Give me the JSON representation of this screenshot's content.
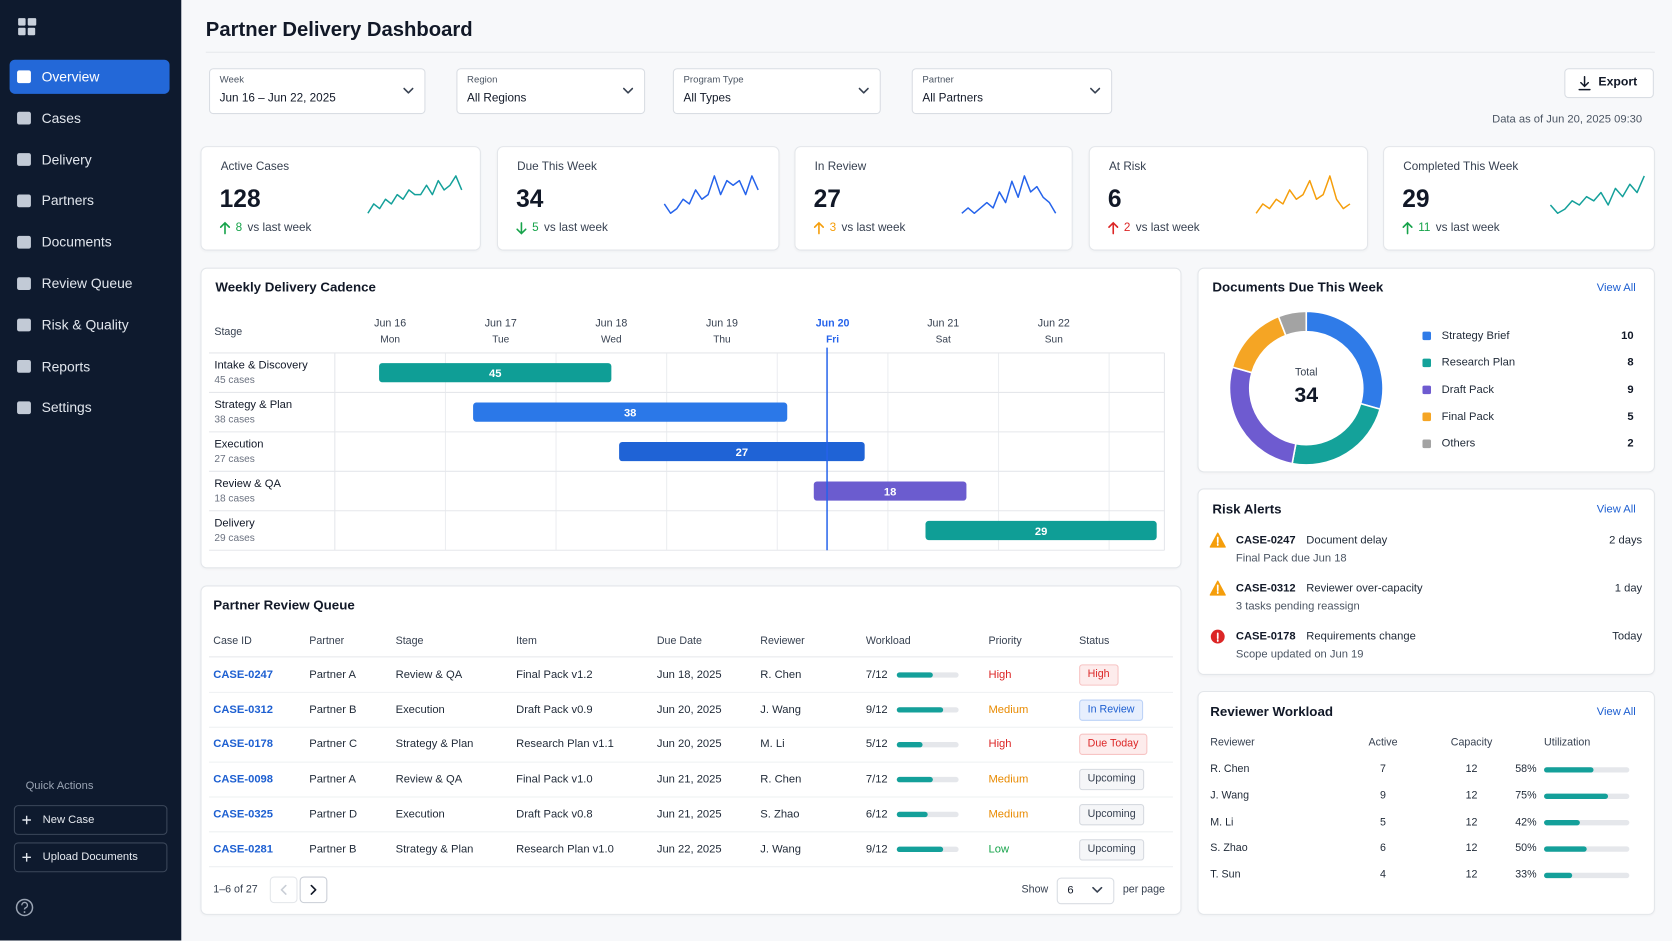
{
  "sidebar": {
    "nav": [
      "Overview",
      "Cases",
      "Delivery",
      "Partners",
      "Documents",
      "Review Queue",
      "Risk & Quality",
      "Reports",
      "Settings"
    ],
    "active_index": 0,
    "quick_actions": "Quick Actions",
    "actions": [
      "New Case",
      "Upload Documents"
    ]
  },
  "header": {
    "title": "Partner Delivery Dashboard",
    "export": "Export",
    "data_as_of": "Data as of Jun 20, 2025 09:30"
  },
  "filters": [
    {
      "label": "Week",
      "value": "Jun 16 – Jun 22, 2025"
    },
    {
      "label": "Region",
      "value": "All Regions"
    },
    {
      "label": "Program Type",
      "value": "All Types"
    },
    {
      "label": "Partner",
      "value": "All Partners"
    }
  ],
  "kpis": [
    {
      "label": "Active Cases",
      "value": 128,
      "delta": 8,
      "delta_text": "vs last week",
      "direction": "up",
      "delta_color": "#16a34a",
      "trend_color": "#14a09a",
      "trend": [
        2,
        4,
        3,
        5,
        4,
        6,
        5,
        7,
        6,
        6,
        8,
        6,
        9,
        7,
        8,
        10,
        7
      ]
    },
    {
      "label": "Due This Week",
      "value": 34,
      "delta": 5,
      "delta_text": "vs last week",
      "direction": "down",
      "delta_color": "#16a34a",
      "trend_color": "#2563eb",
      "trend": [
        3,
        1,
        2,
        4,
        3,
        6,
        4,
        5,
        9,
        5,
        8,
        7,
        8,
        5,
        9,
        6
      ]
    },
    {
      "label": "In Review",
      "value": 27,
      "delta": 3,
      "delta_text": "vs last week",
      "direction": "up",
      "delta_color": "#f59e0b",
      "trend_color": "#2563eb",
      "trend": [
        2,
        3,
        2,
        3,
        4,
        3,
        6,
        4,
        8,
        5,
        9,
        6,
        7,
        5,
        4,
        2
      ]
    },
    {
      "label": "At Risk",
      "value": 6,
      "delta": 2,
      "delta_text": "vs last week",
      "direction": "up",
      "delta_color": "#dc2626",
      "trend_color": "#f59e0b",
      "trend": [
        2,
        4,
        3,
        5,
        4,
        7,
        5,
        6,
        9,
        5,
        6,
        10,
        5,
        3,
        4
      ]
    },
    {
      "label": "Completed This Week",
      "value": 29,
      "delta": 11,
      "delta_text": "vs last week",
      "direction": "up",
      "delta_color": "#16a34a",
      "trend_color": "#14a09a",
      "trend": [
        3,
        1,
        2,
        4,
        3,
        5,
        4,
        6,
        3,
        7,
        5,
        8,
        6,
        10
      ]
    }
  ],
  "cadence": {
    "title": "Weekly Delivery Cadence",
    "stage_header": "Stage",
    "days": [
      {
        "date": "Jun 16",
        "weekday": "Mon"
      },
      {
        "date": "Jun 17",
        "weekday": "Tue"
      },
      {
        "date": "Jun 18",
        "weekday": "Wed"
      },
      {
        "date": "Jun 19",
        "weekday": "Thu"
      },
      {
        "date": "Jun 20",
        "weekday": "Fri"
      },
      {
        "date": "Jun 21",
        "weekday": "Sat"
      },
      {
        "date": "Jun 22",
        "weekday": "Sun"
      }
    ],
    "today_index": 4,
    "today_position": 4.45,
    "today_color": "#2563eb",
    "xlim": [
      0,
      7.5
    ],
    "stages": [
      {
        "name": "Intake & Discovery",
        "cases": "45 cases",
        "value": 45,
        "start": 0.4,
        "end": 2.5,
        "color": "#0f9e96"
      },
      {
        "name": "Strategy & Plan",
        "cases": "38 cases",
        "value": 38,
        "start": 1.25,
        "end": 4.09,
        "color": "#2b78e8"
      },
      {
        "name": "Execution",
        "cases": "27 cases",
        "value": 27,
        "start": 2.57,
        "end": 4.79,
        "color": "#1f63d6"
      },
      {
        "name": "Review & QA",
        "cases": "18 cases",
        "value": 18,
        "start": 4.33,
        "end": 5.71,
        "color": "#6b5ccf"
      },
      {
        "name": "Delivery",
        "cases": "29 cases",
        "value": 29,
        "start": 5.34,
        "end": 7.43,
        "color": "#0f9e96"
      }
    ]
  },
  "documents": {
    "title": "Documents Due This Week",
    "view_all": "View All",
    "total_label": "Total",
    "total": 34,
    "segments": [
      {
        "name": "Strategy Brief",
        "value": 10,
        "color": "#2f7be8"
      },
      {
        "name": "Research Plan",
        "value": 8,
        "color": "#14a29a"
      },
      {
        "name": "Draft Pack",
        "value": 9,
        "color": "#6e5bd0"
      },
      {
        "name": "Final Pack",
        "value": 5,
        "color": "#f5a524"
      },
      {
        "name": "Others",
        "value": 2,
        "color": "#a3a3a3"
      }
    ]
  },
  "risk_alerts": {
    "title": "Risk Alerts",
    "view_all": "View All",
    "items": [
      {
        "case": "CASE-0247",
        "title": "Document delay",
        "detail": "Final Pack due Jun 18",
        "time": "2 days",
        "severity": "warning"
      },
      {
        "case": "CASE-0312",
        "title": "Reviewer over-capacity",
        "detail": "3 tasks pending reassign",
        "time": "1 day",
        "severity": "warning"
      },
      {
        "case": "CASE-0178",
        "title": "Requirements change",
        "detail": "Scope updated on Jun 19",
        "time": "Today",
        "severity": "critical"
      }
    ]
  },
  "queue": {
    "title": "Partner Review Queue",
    "columns": [
      "Case ID",
      "Partner",
      "Stage",
      "Item",
      "Due Date",
      "Reviewer",
      "Workload",
      "Priority",
      "Status"
    ],
    "bar_color": "#14a09a",
    "rows": [
      {
        "case_id": "CASE-0247",
        "partner": "Partner A",
        "stage": "Review & QA",
        "item": "Final Pack v1.2",
        "due_date": "Jun 18, 2025",
        "reviewer": "R. Chen",
        "workload": 7,
        "capacity": 12,
        "workload_label": "7/12",
        "priority": "High",
        "priority_tone": "danger",
        "status": "High",
        "status_tone": "danger"
      },
      {
        "case_id": "CASE-0312",
        "partner": "Partner B",
        "stage": "Execution",
        "item": "Draft Pack v0.9",
        "due_date": "Jun 20, 2025",
        "reviewer": "J. Wang",
        "workload": 9,
        "capacity": 12,
        "workload_label": "9/12",
        "priority": "Medium",
        "priority_tone": "warning",
        "status": "In Review",
        "status_tone": "info"
      },
      {
        "case_id": "CASE-0178",
        "partner": "Partner C",
        "stage": "Strategy & Plan",
        "item": "Research Plan v1.1",
        "due_date": "Jun 20, 2025",
        "reviewer": "M. Li",
        "workload": 5,
        "capacity": 12,
        "workload_label": "5/12",
        "priority": "High",
        "priority_tone": "danger",
        "status": "Due Today",
        "status_tone": "danger"
      },
      {
        "case_id": "CASE-0098",
        "partner": "Partner A",
        "stage": "Review & QA",
        "item": "Final Pack v1.0",
        "due_date": "Jun 21, 2025",
        "reviewer": "R. Chen",
        "workload": 7,
        "capacity": 12,
        "workload_label": "7/12",
        "priority": "Medium",
        "priority_tone": "warning",
        "status": "Upcoming",
        "status_tone": "neutral"
      },
      {
        "case_id": "CASE-0325",
        "partner": "Partner D",
        "stage": "Execution",
        "item": "Draft Pack v0.8",
        "due_date": "Jun 21, 2025",
        "reviewer": "S. Zhao",
        "workload": 6,
        "capacity": 12,
        "workload_label": "6/12",
        "priority": "Medium",
        "priority_tone": "warning",
        "status": "Upcoming",
        "status_tone": "neutral"
      },
      {
        "case_id": "CASE-0281",
        "partner": "Partner B",
        "stage": "Strategy & Plan",
        "item": "Research Plan v1.0",
        "due_date": "Jun 22, 2025",
        "reviewer": "J. Wang",
        "workload": 9,
        "capacity": 12,
        "workload_label": "9/12",
        "priority": "Low",
        "priority_tone": "success",
        "status": "Upcoming",
        "status_tone": "neutral"
      }
    ],
    "range": "1–6 of 27",
    "show": "Show",
    "page_size": 6,
    "per_page": "per page"
  },
  "workload": {
    "title": "Reviewer Workload",
    "view_all": "View All",
    "columns": [
      "Reviewer",
      "Active",
      "Capacity",
      "Utilization"
    ],
    "bar_color": "#14a09a",
    "rows": [
      {
        "reviewer": "R. Chen",
        "active": 7,
        "capacity": 12,
        "utilization": 58,
        "utilization_label": "58%"
      },
      {
        "reviewer": "J. Wang",
        "active": 9,
        "capacity": 12,
        "utilization": 75,
        "utilization_label": "75%"
      },
      {
        "reviewer": "M. Li",
        "active": 5,
        "capacity": 12,
        "utilization": 42,
        "utilization_label": "42%"
      },
      {
        "reviewer": "S. Zhao",
        "active": 6,
        "capacity": 12,
        "utilization": 50,
        "utilization_label": "50%"
      },
      {
        "reviewer": "T. Sun",
        "active": 4,
        "capacity": 12,
        "utilization": 33,
        "utilization_label": "33%"
      }
    ]
  }
}
